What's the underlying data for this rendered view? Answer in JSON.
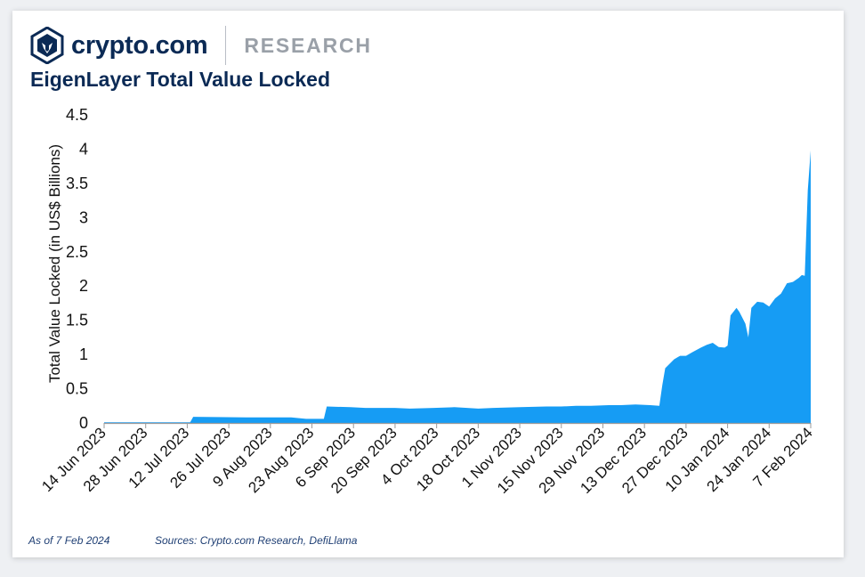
{
  "brand": {
    "name": "crypto.com",
    "section": "RESEARCH",
    "logo_icon": "crypto-com-lion-shield-icon"
  },
  "colors": {
    "brand_navy": "#0b2a55",
    "series_fill": "#169cf4"
  },
  "footer": {
    "as_of": "As of 7 Feb 2024",
    "sources": "Sources: Crypto.com Research, DefiLlama"
  },
  "chart_data": {
    "type": "area",
    "title": "EigenLayer Total Value Locked",
    "xlabel": "",
    "ylabel": "Total Value Locked (in US$ Billions)",
    "ylim": [
      0,
      4.5
    ],
    "y_ticks": [
      "0",
      "0.5",
      "1",
      "1.5",
      "2",
      "2.5",
      "3",
      "3.5",
      "4",
      "4.5"
    ],
    "x_range": [
      "2023-06-14",
      "2024-02-07"
    ],
    "x_ticks": [
      "14 Jun 2023",
      "28 Jun 2023",
      "12 Jul 2023",
      "26 Jul 2023",
      "9 Aug 2023",
      "23 Aug 2023",
      "6 Sep 2023",
      "20 Sep 2023",
      "4 Oct 2023",
      "18 Oct 2023",
      "1 Nov 2023",
      "15 Nov 2023",
      "29 Nov 2023",
      "13 Dec 2023",
      "27 Dec 2023",
      "10 Jan 2024",
      "24 Jan 2024",
      "7 Feb 2024"
    ],
    "grid": false,
    "legend": "none",
    "series": [
      {
        "name": "",
        "x": [
          "2023-06-14",
          "2023-07-13",
          "2023-07-14",
          "2023-08-01",
          "2023-08-16",
          "2023-08-21",
          "2023-08-27",
          "2023-08-28",
          "2023-09-05",
          "2023-09-10",
          "2023-09-20",
          "2023-09-25",
          "2023-10-03",
          "2023-10-10",
          "2023-10-18",
          "2023-10-23",
          "2023-11-01",
          "2023-11-10",
          "2023-11-15",
          "2023-11-20",
          "2023-11-25",
          "2023-12-01",
          "2023-12-05",
          "2023-12-10",
          "2023-12-15",
          "2023-12-18",
          "2023-12-19",
          "2023-12-20",
          "2023-12-23",
          "2023-12-25",
          "2023-12-27",
          "2023-12-29",
          "2024-01-01",
          "2024-01-03",
          "2024-01-05",
          "2024-01-07",
          "2024-01-09",
          "2024-01-10",
          "2024-01-11",
          "2024-01-13",
          "2024-01-14",
          "2024-01-16",
          "2024-01-17",
          "2024-01-18",
          "2024-01-20",
          "2024-01-22",
          "2024-01-24",
          "2024-01-26",
          "2024-01-28",
          "2024-01-30",
          "2024-02-01",
          "2024-02-03",
          "2024-02-04",
          "2024-02-05",
          "2024-02-06",
          "2024-02-07"
        ],
        "values": [
          0.01,
          0.01,
          0.09,
          0.08,
          0.08,
          0.06,
          0.06,
          0.24,
          0.23,
          0.22,
          0.22,
          0.21,
          0.22,
          0.23,
          0.21,
          0.22,
          0.23,
          0.24,
          0.24,
          0.25,
          0.25,
          0.26,
          0.26,
          0.27,
          0.26,
          0.25,
          0.55,
          0.8,
          0.93,
          0.98,
          0.98,
          1.03,
          1.1,
          1.14,
          1.17,
          1.11,
          1.1,
          1.13,
          1.57,
          1.68,
          1.62,
          1.45,
          1.25,
          1.68,
          1.77,
          1.76,
          1.7,
          1.82,
          1.89,
          2.04,
          2.06,
          2.12,
          2.16,
          2.15,
          3.4,
          3.98
        ]
      }
    ]
  }
}
